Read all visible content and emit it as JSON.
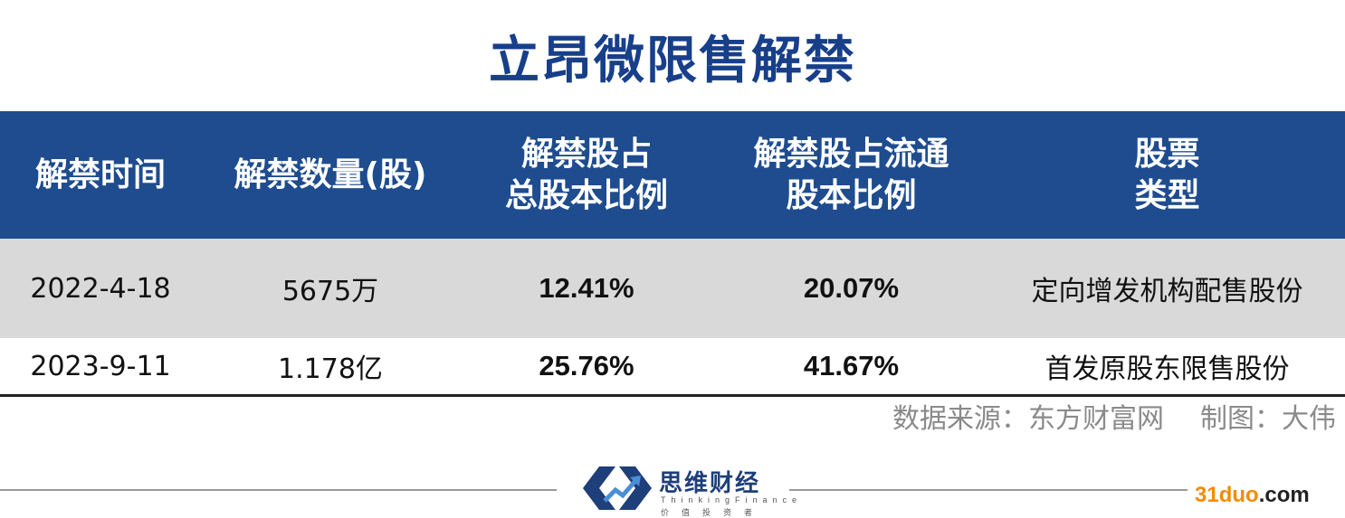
{
  "title": "立昂微限售解禁",
  "colors": {
    "title": "#173f8a",
    "header_bg": "#1e4c8f",
    "row_alt_bg": "#d9d9d9"
  },
  "table": {
    "headers": [
      {
        "line1": "解禁时间",
        "line2": ""
      },
      {
        "line1": "解禁数量(股)",
        "line2": ""
      },
      {
        "line1": "解禁股占",
        "line2": "总股本比例"
      },
      {
        "line1": "解禁股占流通",
        "line2": "股本比例"
      },
      {
        "line1": "股票",
        "line2": "类型"
      }
    ],
    "rows": [
      {
        "date": "2022-4-18",
        "quantity": "5675万",
        "pct_total": "12.41%",
        "pct_float": "20.07%",
        "type": "定向增发机构配售股份"
      },
      {
        "date": "2023-9-11",
        "quantity": "1.178亿",
        "pct_total": "25.76%",
        "pct_float": "41.67%",
        "type": "首发原股东限售股份"
      }
    ]
  },
  "source": {
    "data_source": "数据来源：东方财富网",
    "chart_by": "制图：大伟"
  },
  "logo": {
    "name": "思维财经",
    "subtitle": "ThinkingFinance",
    "slogan": "价值投资者"
  },
  "watermark": {
    "part1": "31duo",
    "part2": ".com"
  }
}
